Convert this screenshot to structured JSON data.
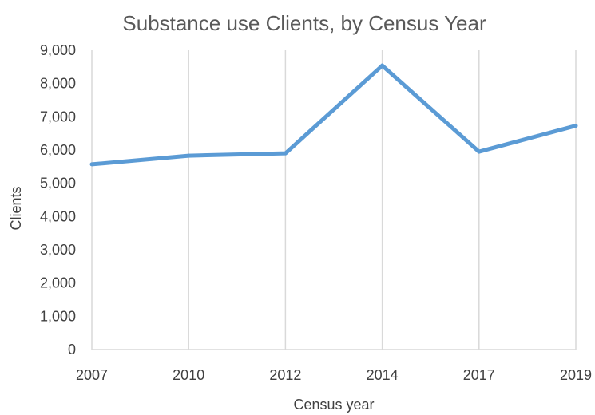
{
  "chart_data": {
    "type": "line",
    "title": "Substance use Clients, by Census Year",
    "xlabel": "Census year",
    "ylabel": "Clients",
    "categories": [
      "2007",
      "2010",
      "2012",
      "2014",
      "2017",
      "2019"
    ],
    "series": [
      {
        "values": [
          5570,
          5830,
          5900,
          8540,
          5950,
          6730
        ]
      }
    ],
    "ylim": [
      0,
      9000
    ],
    "yticks": [
      "0",
      "1,000",
      "2,000",
      "3,000",
      "4,000",
      "5,000",
      "6,000",
      "7,000",
      "8,000",
      "9,000"
    ],
    "grid": "vertical",
    "legend": "none",
    "colors": {
      "line": "#5b9bd5",
      "grid": "#d9d9d9",
      "text": "#404040",
      "title": "#595959"
    }
  }
}
